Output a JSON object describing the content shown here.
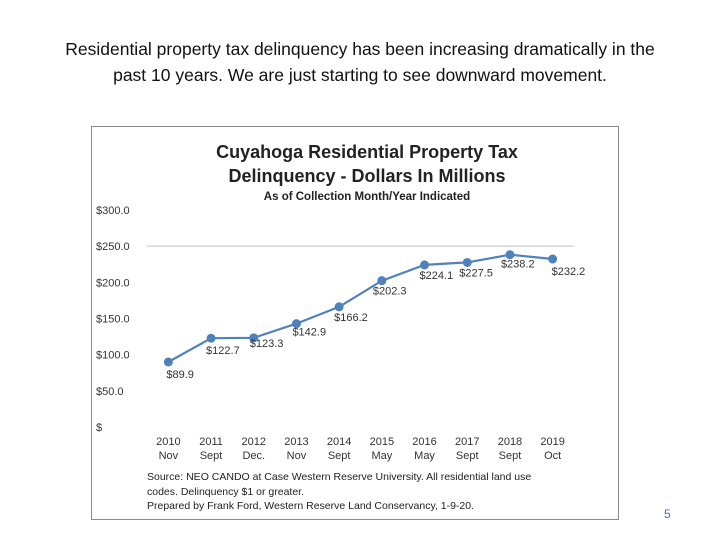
{
  "slide": {
    "heading_line1": "Residential property tax delinquency has been increasing dramatically in the",
    "heading_line2": "past 10 years.  We are just starting to see downward movement.",
    "page_number": "5"
  },
  "chart_data": {
    "type": "line",
    "title_line1": "Cuyahoga Residential Property Tax",
    "title_line2": "Delinquency - Dollars In Millions",
    "subtitle": "As of  Collection  Month/Year Indicated",
    "categories": [
      {
        "year": "2010",
        "month": "Nov"
      },
      {
        "year": "2011",
        "month": "Sept"
      },
      {
        "year": "2012",
        "month": "Dec."
      },
      {
        "year": "2013",
        "month": "Nov"
      },
      {
        "year": "2014",
        "month": "Sept"
      },
      {
        "year": "2015",
        "month": "May"
      },
      {
        "year": "2016",
        "month": "May"
      },
      {
        "year": "2017",
        "month": "Sept"
      },
      {
        "year": "2018",
        "month": "Sept"
      },
      {
        "year": "2019",
        "month": "Oct"
      }
    ],
    "values": [
      89.9,
      122.7,
      123.3,
      142.9,
      166.2,
      202.3,
      224.1,
      227.5,
      238.2,
      232.2
    ],
    "data_labels": [
      "$89.9",
      "$122.7",
      "$123.3",
      "$142.9",
      "$166.2",
      "$202.3",
      "$224.1",
      "$227.5",
      "$238.2",
      "$232.2"
    ],
    "y_ticks": [
      0,
      50,
      100,
      150,
      200,
      250,
      300
    ],
    "y_tick_labels": [
      "$",
      "$50.0",
      "$100.0",
      "$150.0",
      "$200.0",
      "$250.0",
      "$300.0"
    ],
    "ylim": [
      0,
      300
    ],
    "gridlines": [
      250
    ],
    "series_color": "#4f81bd",
    "source_line1": "Source:  NEO CANDO at Case Western Reserve University.   All residential land use",
    "source_line2": "codes.    Delinquency $1 or greater.",
    "source_line3": "Prepared by Frank Ford, Western Reserve Land Conservancy, 1-9-20."
  }
}
